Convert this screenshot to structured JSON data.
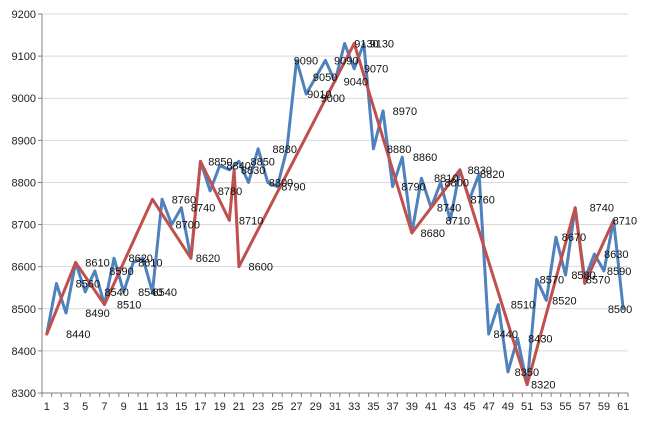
{
  "chart_data": {
    "type": "line",
    "title": "",
    "xlabel": "",
    "ylabel": "",
    "x": [
      1,
      2,
      3,
      4,
      5,
      6,
      7,
      8,
      9,
      10,
      11,
      12,
      13,
      14,
      15,
      16,
      17,
      18,
      19,
      20,
      21,
      22,
      23,
      24,
      25,
      26,
      27,
      28,
      29,
      30,
      31,
      32,
      33,
      34,
      35,
      36,
      37,
      38,
      39,
      40,
      41,
      42,
      43,
      44,
      45,
      46,
      47,
      48,
      49,
      50,
      51,
      52,
      53,
      54,
      55,
      56,
      57,
      58,
      59,
      60,
      61
    ],
    "x_tick_labels": [
      "1",
      "3",
      "5",
      "7",
      "9",
      "11",
      "13",
      "15",
      "17",
      "19",
      "21",
      "23",
      "25",
      "27",
      "29",
      "31",
      "33",
      "35",
      "37",
      "39",
      "41",
      "43",
      "45",
      "47",
      "49",
      "51",
      "53",
      "55",
      "57",
      "59",
      "61"
    ],
    "ylim": [
      8300,
      9200
    ],
    "y_ticks": [
      8300,
      8400,
      8500,
      8600,
      8700,
      8800,
      8900,
      9000,
      9100,
      9200
    ],
    "grid": true,
    "legend": "none",
    "series": [
      {
        "color": "#4f81bd",
        "values": [
          8440,
          8560,
          8490,
          8610,
          8540,
          8590,
          8510,
          8620,
          8540,
          8610,
          8620,
          8540,
          8760,
          8700,
          8740,
          8620,
          8850,
          8780,
          8840,
          8830,
          8850,
          8800,
          8880,
          8800,
          8790,
          8880,
          9090,
          9010,
          9050,
          9090,
          9040,
          9130,
          9070,
          9130,
          8880,
          8970,
          8790,
          8860,
          8680,
          8810,
          8740,
          8800,
          8710,
          8830,
          8760,
          8820,
          8440,
          8510,
          8350,
          8430,
          8320,
          8570,
          8520,
          8670,
          8580,
          8740,
          8570,
          8630,
          8590,
          8710,
          8500
        ]
      },
      {
        "color": "#c0504d",
        "points": [
          [
            1,
            8440
          ],
          [
            4,
            8610
          ],
          [
            7,
            8510
          ],
          [
            12,
            8760
          ],
          [
            16,
            8620
          ],
          [
            17,
            8850
          ],
          [
            20,
            8710
          ],
          [
            20.5,
            8830
          ],
          [
            21,
            8600
          ],
          [
            33,
            9130
          ],
          [
            39,
            8680
          ],
          [
            44,
            8830
          ],
          [
            51,
            8320
          ],
          [
            56,
            8740
          ],
          [
            57,
            8560
          ],
          [
            60,
            8710
          ]
        ]
      }
    ],
    "data_labels": [
      {
        "x": 3,
        "y": 8440,
        "text": "8440"
      },
      {
        "x": 4,
        "y": 8560,
        "text": "8560"
      },
      {
        "x": 5,
        "y": 8490,
        "text": "8490"
      },
      {
        "x": 5,
        "y": 8610,
        "text": "8610"
      },
      {
        "x": 7,
        "y": 8540,
        "text": "8540"
      },
      {
        "x": 7.5,
        "y": 8590,
        "text": "8590"
      },
      {
        "x": 8.3,
        "y": 8510,
        "text": "8510"
      },
      {
        "x": 9.5,
        "y": 8620,
        "text": "8620"
      },
      {
        "x": 10.5,
        "y": 8610,
        "text": "8610"
      },
      {
        "x": 10.5,
        "y": 8540,
        "text": "8540"
      },
      {
        "x": 12,
        "y": 8540,
        "text": "8540"
      },
      {
        "x": 14,
        "y": 8760,
        "text": "8760"
      },
      {
        "x": 14.4,
        "y": 8700,
        "text": "8700"
      },
      {
        "x": 16,
        "y": 8740,
        "text": "8740"
      },
      {
        "x": 16.5,
        "y": 8620,
        "text": "8620"
      },
      {
        "x": 17.8,
        "y": 8850,
        "text": "8850"
      },
      {
        "x": 18.8,
        "y": 8780,
        "text": "8780"
      },
      {
        "x": 19.7,
        "y": 8840,
        "text": "8840"
      },
      {
        "x": 21.2,
        "y": 8830,
        "text": "8830"
      },
      {
        "x": 22.2,
        "y": 8850,
        "text": "8850"
      },
      {
        "x": 21,
        "y": 8710,
        "text": "8710"
      },
      {
        "x": 22,
        "y": 8600,
        "text": "8600"
      },
      {
        "x": 24.5,
        "y": 8880,
        "text": "8880"
      },
      {
        "x": 24.1,
        "y": 8800,
        "text": "8800"
      },
      {
        "x": 25.4,
        "y": 8790,
        "text": "8790"
      },
      {
        "x": 26.7,
        "y": 9090,
        "text": "9090"
      },
      {
        "x": 28.1,
        "y": 9010,
        "text": "9010"
      },
      {
        "x": 28.7,
        "y": 9050,
        "text": "9050"
      },
      {
        "x": 29.5,
        "y": 9000,
        "text": "9000"
      },
      {
        "x": 30.9,
        "y": 9090,
        "text": "9090"
      },
      {
        "x": 31.9,
        "y": 9040,
        "text": "9040"
      },
      {
        "x": 33,
        "y": 9130,
        "text": "9130"
      },
      {
        "x": 34.6,
        "y": 9130,
        "text": "9130"
      },
      {
        "x": 34,
        "y": 9070,
        "text": "9070"
      },
      {
        "x": 37,
        "y": 8970,
        "text": "8970"
      },
      {
        "x": 36.4,
        "y": 8880,
        "text": "8880"
      },
      {
        "x": 39.1,
        "y": 8860,
        "text": "8860"
      },
      {
        "x": 37.9,
        "y": 8790,
        "text": "8790"
      },
      {
        "x": 39.9,
        "y": 8680,
        "text": "8680"
      },
      {
        "x": 41.3,
        "y": 8810,
        "text": "8810"
      },
      {
        "x": 41.6,
        "y": 8740,
        "text": "8740"
      },
      {
        "x": 42.4,
        "y": 8800,
        "text": "8800"
      },
      {
        "x": 42.5,
        "y": 8710,
        "text": "8710"
      },
      {
        "x": 44.8,
        "y": 8830,
        "text": "8830"
      },
      {
        "x": 46.1,
        "y": 8820,
        "text": "8820"
      },
      {
        "x": 45.1,
        "y": 8760,
        "text": "8760"
      },
      {
        "x": 47.5,
        "y": 8440,
        "text": "8440"
      },
      {
        "x": 49.3,
        "y": 8510,
        "text": "8510"
      },
      {
        "x": 49.7,
        "y": 8350,
        "text": "8350"
      },
      {
        "x": 51.1,
        "y": 8430,
        "text": "8430"
      },
      {
        "x": 51.4,
        "y": 8320,
        "text": "8320"
      },
      {
        "x": 52.3,
        "y": 8570,
        "text": "8570"
      },
      {
        "x": 53.6,
        "y": 8520,
        "text": "8520"
      },
      {
        "x": 54.6,
        "y": 8670,
        "text": "8670"
      },
      {
        "x": 55.6,
        "y": 8580,
        "text": "8580"
      },
      {
        "x": 57.5,
        "y": 8740,
        "text": "8740"
      },
      {
        "x": 57.1,
        "y": 8570,
        "text": "8570"
      },
      {
        "x": 59,
        "y": 8630,
        "text": "8630"
      },
      {
        "x": 59.3,
        "y": 8590,
        "text": "8590"
      },
      {
        "x": 59.9,
        "y": 8710,
        "text": "8710"
      },
      {
        "x": 59.4,
        "y": 8500,
        "text": "8500"
      }
    ]
  }
}
